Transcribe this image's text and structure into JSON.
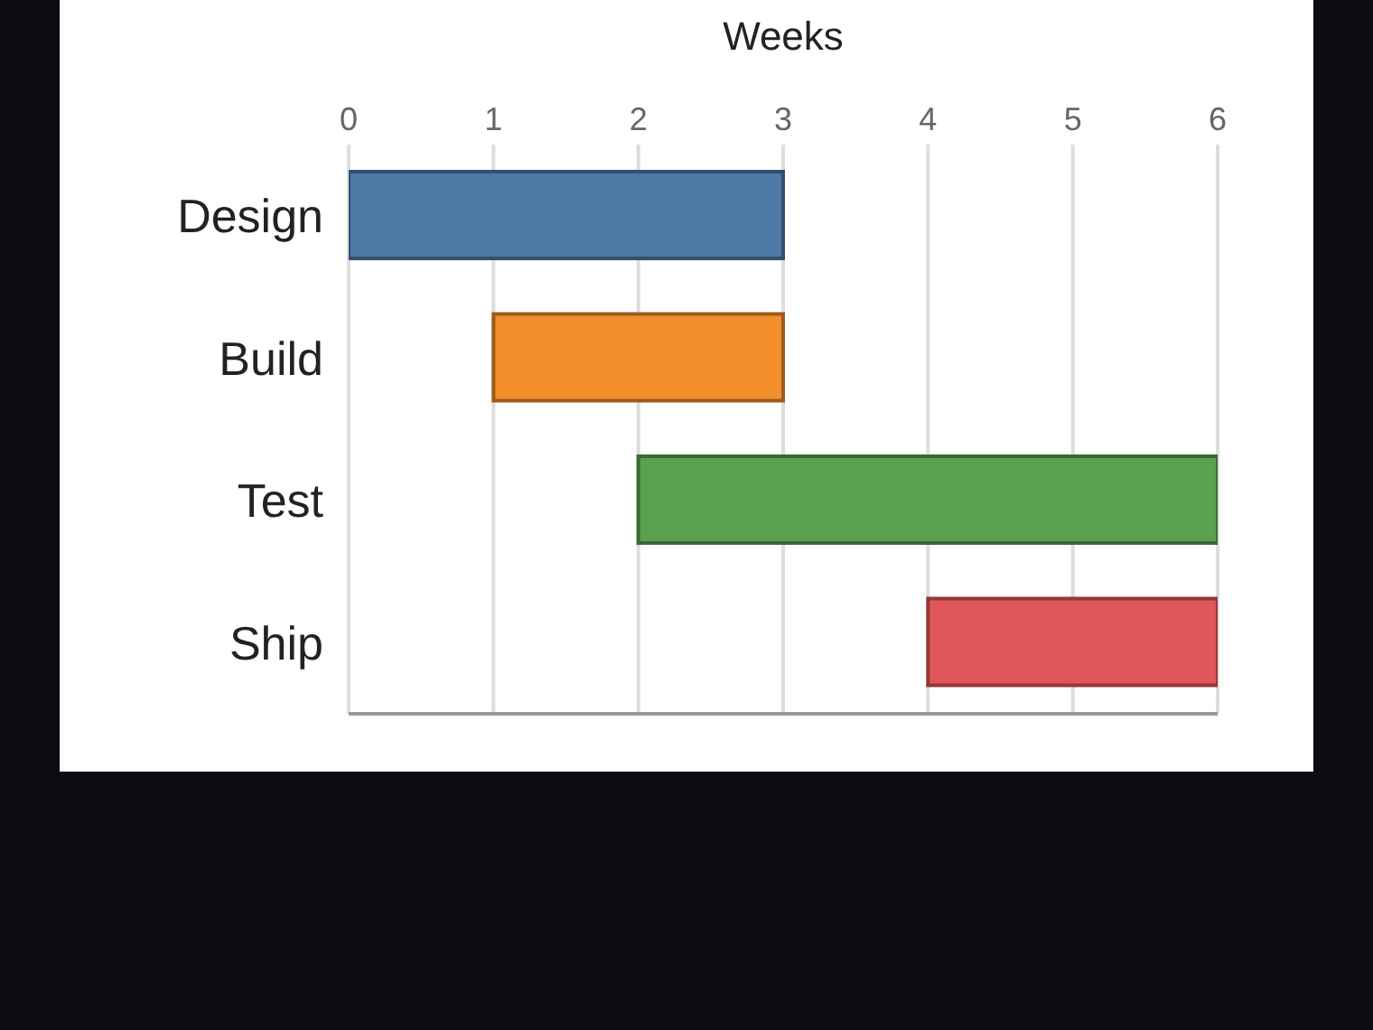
{
  "chart_data": {
    "type": "bar",
    "orientation": "horizontal",
    "xlabel": "Weeks",
    "categories": [
      "Design",
      "Build",
      "Test",
      "Ship"
    ],
    "base": [
      0,
      1,
      2,
      4
    ],
    "values": [
      3,
      2,
      4,
      2
    ],
    "colors": [
      "#4e79a7",
      "#f28e2b",
      "#59a14f",
      "#e15759"
    ],
    "xlim": [
      0,
      6
    ],
    "xticks": [
      0,
      1,
      2,
      3,
      4,
      5,
      6
    ],
    "grid": "x",
    "legend": false
  }
}
